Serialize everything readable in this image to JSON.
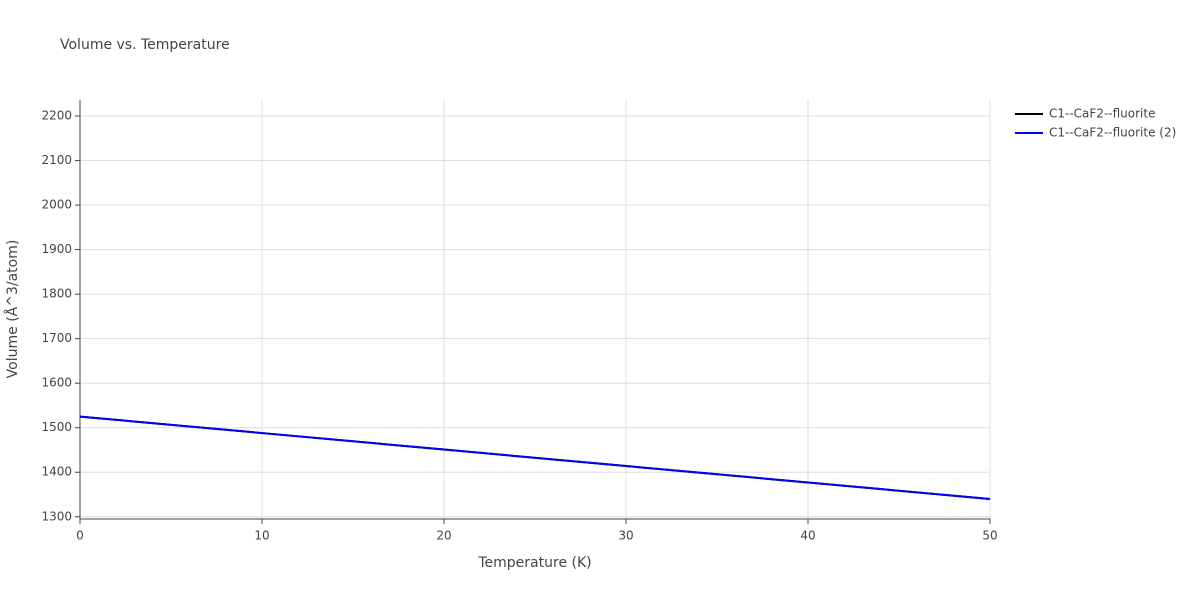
{
  "chart_data": {
    "type": "line",
    "title": "Volume vs. Temperature",
    "x_label": "Temperature (K)",
    "y_label": "Volume (Å^3/atom)",
    "x": [
      0,
      10,
      20,
      30,
      40,
      50
    ],
    "series": [
      {
        "name": "C1--CaF2--fluorite",
        "color": "#000000",
        "values": [
          1525,
          1488,
          1451,
          1414,
          1377,
          1340
        ]
      },
      {
        "name": "C1--CaF2--fluorite (2)",
        "color": "#0000ff",
        "values": [
          1525,
          1488,
          1451,
          1414,
          1377,
          1340
        ]
      }
    ],
    "xlim": [
      0,
      50
    ],
    "xticks": [
      0,
      10,
      20,
      30,
      40,
      50
    ],
    "ylim": [
      1295,
      2236
    ],
    "yticks": [
      1300,
      1400,
      1500,
      1600,
      1700,
      1800,
      1900,
      2000,
      2100,
      2200
    ],
    "grid": true
  }
}
